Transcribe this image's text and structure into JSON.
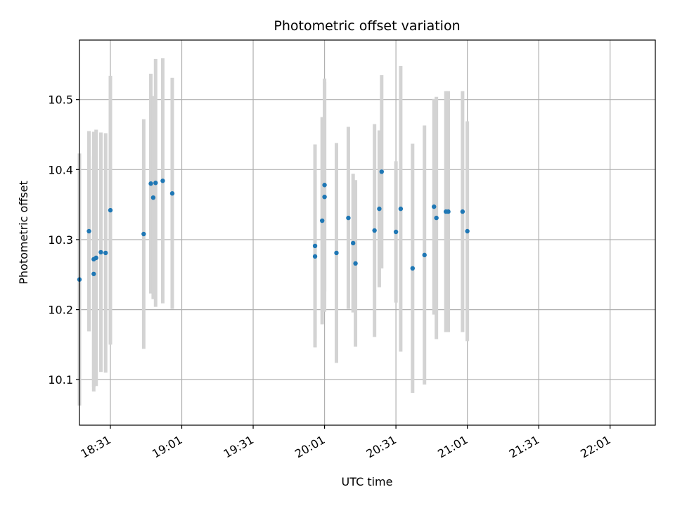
{
  "chart_data": {
    "type": "scatter",
    "title": "Photometric offset variation",
    "xlabel": "UTC time",
    "ylabel": "Photometric offset",
    "x_tick_labels": [
      "18:31",
      "19:01",
      "19:31",
      "20:01",
      "20:31",
      "21:01",
      "21:31",
      "22:01"
    ],
    "x_ticks_minutes": [
      1111,
      1141,
      1171,
      1201,
      1231,
      1261,
      1291,
      1321
    ],
    "y_ticks": [
      10.1,
      10.2,
      10.3,
      10.4,
      10.5
    ],
    "y_tick_labels": [
      "10.1",
      "10.2",
      "10.3",
      "10.4",
      "10.5"
    ],
    "xlim": [
      "18:18",
      "22:20"
    ],
    "ylim": [
      10.035,
      10.585
    ],
    "grid": true,
    "point_color": "#1f77b4",
    "errorbar_color": "#d3d3d3",
    "points": [
      {
        "t": "18:18",
        "y": 10.243,
        "err": 0.18
      },
      {
        "t": "18:22",
        "y": 10.312,
        "err": 0.143
      },
      {
        "t": "18:24",
        "y": 10.251,
        "err": 0.168
      },
      {
        "t": "18:24",
        "y": 10.272,
        "err": 0.182
      },
      {
        "t": "18:25",
        "y": 10.274,
        "err": 0.183
      },
      {
        "t": "18:27",
        "y": 10.282,
        "err": 0.171
      },
      {
        "t": "18:29",
        "y": 10.281,
        "err": 0.171
      },
      {
        "t": "18:31",
        "y": 10.342,
        "err": 0.192
      },
      {
        "t": "18:45",
        "y": 10.308,
        "err": 0.164
      },
      {
        "t": "18:48",
        "y": 10.38,
        "err": 0.157
      },
      {
        "t": "18:49",
        "y": 10.36,
        "err": 0.145
      },
      {
        "t": "18:50",
        "y": 10.381,
        "err": 0.177
      },
      {
        "t": "18:53",
        "y": 10.384,
        "err": 0.175
      },
      {
        "t": "18:57",
        "y": 10.366,
        "err": 0.165
      },
      {
        "t": "19:57",
        "y": 10.276,
        "err": 0.117
      },
      {
        "t": "19:57",
        "y": 10.291,
        "err": 0.145
      },
      {
        "t": "20:00",
        "y": 10.327,
        "err": 0.148
      },
      {
        "t": "20:01",
        "y": 10.378,
        "err": 0.152
      },
      {
        "t": "20:01",
        "y": 10.361,
        "err": 0.164
      },
      {
        "t": "20:06",
        "y": 10.281,
        "err": 0.157
      },
      {
        "t": "20:11",
        "y": 10.331,
        "err": 0.13
      },
      {
        "t": "20:13",
        "y": 10.295,
        "err": 0.099
      },
      {
        "t": "20:14",
        "y": 10.266,
        "err": 0.119
      },
      {
        "t": "20:22",
        "y": 10.313,
        "err": 0.152
      },
      {
        "t": "20:24",
        "y": 10.344,
        "err": 0.112
      },
      {
        "t": "20:25",
        "y": 10.397,
        "err": 0.138
      },
      {
        "t": "20:31",
        "y": 10.311,
        "err": 0.101
      },
      {
        "t": "20:33",
        "y": 10.344,
        "err": 0.204
      },
      {
        "t": "20:38",
        "y": 10.259,
        "err": 0.178
      },
      {
        "t": "20:43",
        "y": 10.278,
        "err": 0.185
      },
      {
        "t": "20:47",
        "y": 10.347,
        "err": 0.154
      },
      {
        "t": "20:48",
        "y": 10.331,
        "err": 0.173
      },
      {
        "t": "20:52",
        "y": 10.34,
        "err": 0.172
      },
      {
        "t": "20:53",
        "y": 10.34,
        "err": 0.172
      },
      {
        "t": "20:59",
        "y": 10.34,
        "err": 0.172
      },
      {
        "t": "21:01",
        "y": 10.312,
        "err": 0.157
      }
    ]
  }
}
